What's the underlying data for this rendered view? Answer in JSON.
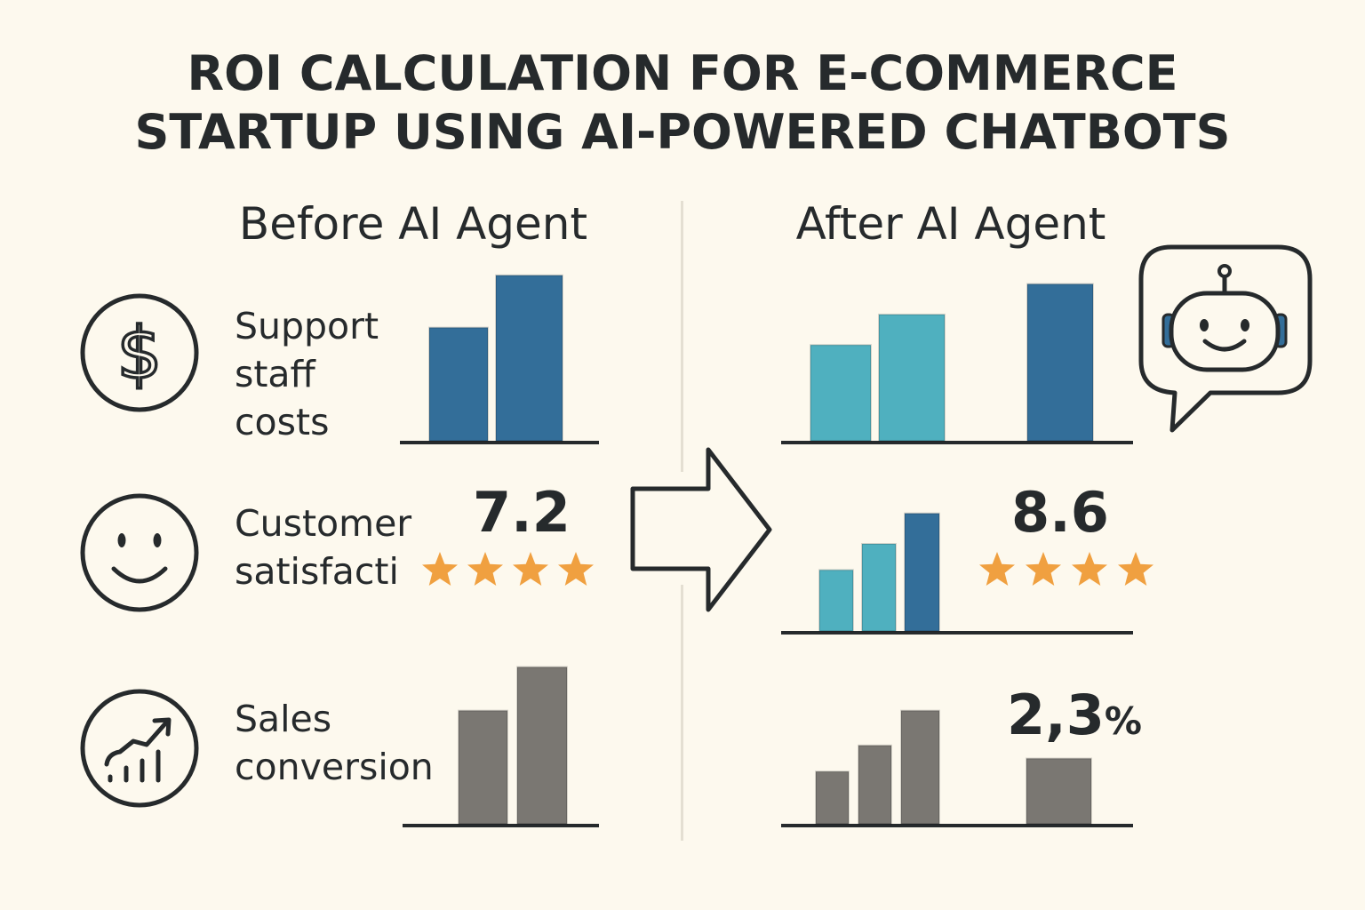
{
  "title": {
    "line1": "ROI CALCULATION FOR E-COMMERCE",
    "line2": "STARTUP USING AI-POWERED CHATBOTS"
  },
  "columns": {
    "before": "Before AI Agent",
    "after": "After AI Agent"
  },
  "rows": {
    "support": {
      "label_lines": [
        "Support",
        "staff",
        "costs"
      ],
      "icon": "dollar-circle-icon"
    },
    "satisfaction": {
      "label_lines": [
        "Customer",
        "satisfacti"
      ],
      "icon": "smiley-icon",
      "before_value": "7.2",
      "after_value": "8.6",
      "before_stars": 4,
      "after_stars": 4
    },
    "sales": {
      "label_lines": [
        "Sales",
        "conversion"
      ],
      "icon": "growth-chart-icon",
      "after_value_main": "2,3",
      "after_value_unit": "%"
    }
  },
  "decor_icons": [
    "arrow-right-icon",
    "robot-chat-icon"
  ],
  "colors": {
    "background": "#fdf9ee",
    "dark_blue": "#336e99",
    "teal": "#4fb0bf",
    "gray": "#7a7772",
    "star": "#f0a040",
    "ink": "#262a2c"
  },
  "chart_data": [
    {
      "type": "bar",
      "name": "support-before",
      "values": [
        1.3,
        1.9
      ]
    },
    {
      "type": "bar",
      "name": "support-after",
      "values": [
        1.1,
        1.45,
        0,
        1.8
      ]
    },
    {
      "type": "bar",
      "name": "satisfaction-after",
      "values": [
        0.7,
        1.0,
        1.35
      ]
    },
    {
      "type": "bar",
      "name": "sales-before",
      "values": [
        1.3,
        1.8
      ]
    },
    {
      "type": "bar",
      "name": "sales-after",
      "values": [
        0.6,
        0.9,
        1.3,
        0,
        0.75
      ]
    }
  ]
}
